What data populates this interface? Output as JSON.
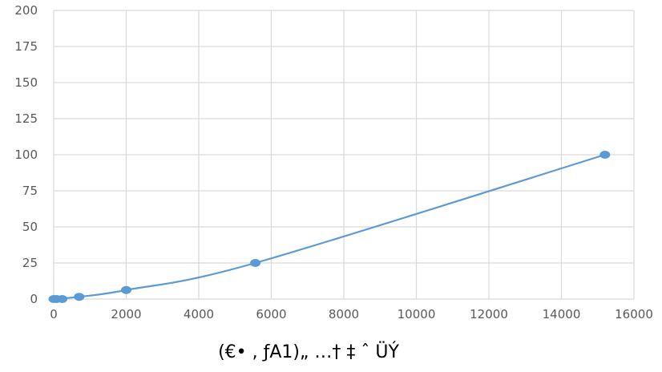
{
  "chart_data": {
    "type": "scatter",
    "title": "",
    "xlabel": "(€• , ƒA1)„ …† ‡ ˆ ÜÝ",
    "ylabel": "",
    "xlim": [
      0,
      16000
    ],
    "ylim": [
      0,
      200
    ],
    "x_ticks": [
      "0",
      "2000",
      "4000",
      "6000",
      "8000",
      "10000",
      "12000",
      "14000",
      "16000"
    ],
    "y_ticks": [
      "0",
      "25",
      "50",
      "75",
      "100",
      "125",
      "150",
      "175",
      "200"
    ],
    "x_tick_values": [
      0,
      2000,
      4000,
      6000,
      8000,
      10000,
      12000,
      14000,
      16000
    ],
    "y_tick_values": [
      0,
      25,
      50,
      75,
      100,
      125,
      150,
      175,
      200
    ],
    "grid": true,
    "series": [
      {
        "x": [
          0,
          78,
          234,
          703,
          2000,
          5560,
          15200
        ],
        "y": [
          0,
          0,
          0,
          1.56,
          6.25,
          25,
          100
        ],
        "color": "#5b9bd5",
        "trendline": "smooth"
      }
    ]
  }
}
